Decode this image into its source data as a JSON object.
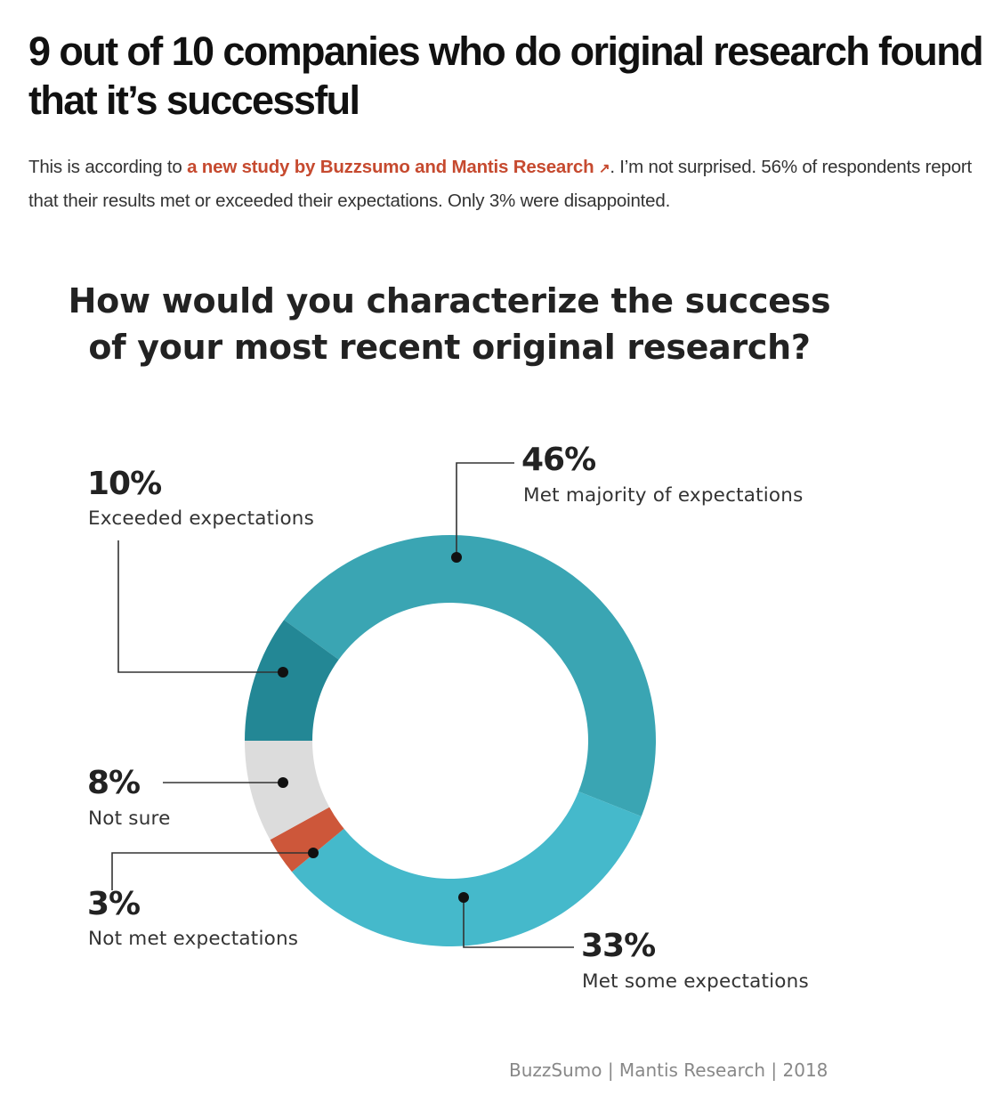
{
  "article": {
    "headline": "9 out of 10 companies who do original research found that it’s successful",
    "intro_before_link": "This is according to ",
    "link_text": "a new study by Buzzsumo and Mantis Research",
    "link_icon": "external-link-arrow-icon",
    "link_arrow": "↗",
    "intro_after_link": ". I’m not surprised. 56% of respondents report that their results met or exceeded their expectations. Only 3% were disappointed.",
    "link_color": "#c64a2f"
  },
  "chart": {
    "title": "How would you characterize the success of your most recent original research?",
    "source": "BuzzSumo | Mantis Research | 2018",
    "labels": {
      "met_majority": {
        "pct": "46%",
        "text": "Met majority of expectations"
      },
      "met_some": {
        "pct": "33%",
        "text": "Met some expectations"
      },
      "not_met": {
        "pct": "3%",
        "text": "Not met expectations"
      },
      "not_sure": {
        "pct": "8%",
        "text": "Not sure"
      },
      "exceeded": {
        "pct": "10%",
        "text": "Exceeded expectations"
      }
    }
  },
  "chart_data": {
    "type": "pie",
    "subtype": "donut",
    "title": "How would you characterize the success of your most recent original research?",
    "categories": [
      "Met majority of expectations",
      "Met some expectations",
      "Not met expectations",
      "Not sure",
      "Exceeded expectations"
    ],
    "values": [
      46,
      33,
      3,
      8,
      10
    ],
    "unit": "%",
    "colors": [
      "#3aa5b3",
      "#45b9cb",
      "#cd573a",
      "#dcdcdc",
      "#238795"
    ],
    "source": "BuzzSumo | Mantis Research | 2018",
    "legend": "callout labels with leader lines"
  }
}
